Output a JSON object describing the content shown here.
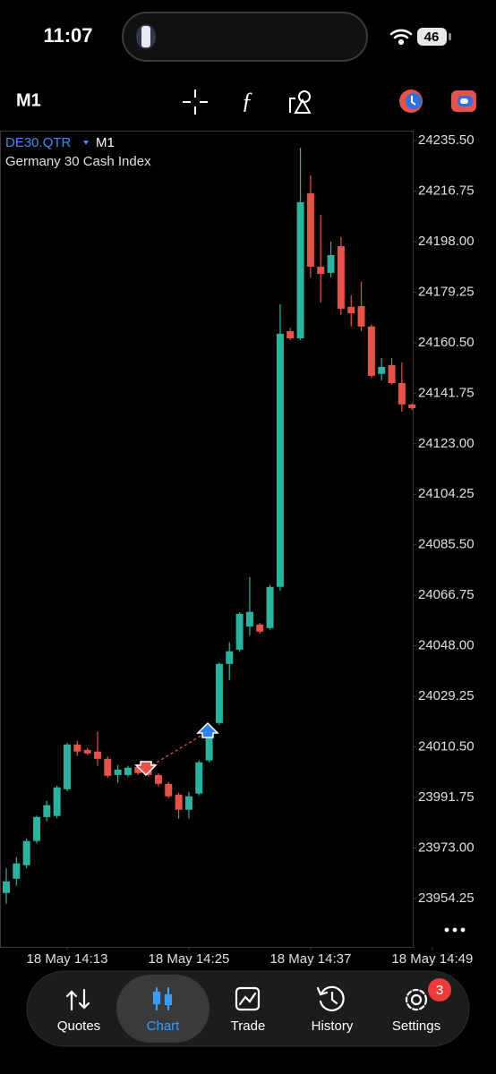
{
  "status_bar": {
    "time": "11:07",
    "battery": "46"
  },
  "toolbar": {
    "timeframe": "M1"
  },
  "chart_data": {
    "type": "candlestick",
    "symbol": "DE30.QTR",
    "timeframe": "M1",
    "title": "Germany 30 Cash Index",
    "categories": [
      null,
      null,
      null,
      null,
      null,
      null,
      "18 May 14:13",
      null,
      null,
      null,
      null,
      null,
      null,
      null,
      null,
      null,
      null,
      null,
      "18 May 14:25",
      null,
      null,
      null,
      null,
      null,
      null,
      null,
      null,
      null,
      null,
      null,
      "18 May 14:37",
      null,
      null,
      null,
      null,
      null,
      null,
      null,
      null,
      null,
      null,
      null,
      "18 May 14:49"
    ],
    "open": [
      23956.3,
      23961.6,
      23966.6,
      23975.6,
      23984.5,
      23984.9,
      23994.8,
      24011.4,
      24009.4,
      24008.8,
      24006.1,
      24000.1,
      24000.1,
      24003.1,
      24002.8,
      24000.1,
      23996.8,
      23992.8,
      23987.2,
      23993.2,
      24005.5,
      24019.4,
      24041.3,
      24046.6,
      24055.2,
      24055.9,
      24054.6,
      24069.9,
      24164.8,
      24162.1,
      24215.9,
      24188.7,
      24186.4,
      24196.3,
      24173.8,
      24174.1,
      24166.5,
      24148.9,
      24152.2,
      24145.5,
      24137.6,
      null,
      null
    ],
    "high": [
      23965.6,
      23969.6,
      23976.5,
      23985.0,
      23990.5,
      23996.2,
      24012.0,
      24012.8,
      24010.2,
      24016.1,
      24007.0,
      24003.8,
      24003.5,
      24003.8,
      24003.5,
      24000.8,
      23997.5,
      23993.5,
      23993.8,
      24005.5,
      24017.0,
      24041.8,
      24049.3,
      24060.5,
      24073.5,
      24056.6,
      24070.6,
      24174.8,
      24166.0,
      24232.8,
      24222.6,
      24207.9,
      24198.0,
      24199.6,
      24178.1,
      24183.1,
      24167.2,
      24154.8,
      24154.8,
      24153.2,
      24138.0,
      null,
      null
    ],
    "low": [
      23952.3,
      23959.0,
      23965.5,
      23974.8,
      23982.9,
      23984.0,
      23994.0,
      24007.1,
      24007.5,
      24003.5,
      23999.0,
      23997.2,
      23999.5,
      24000.1,
      23999.5,
      23996.0,
      23991.5,
      23983.9,
      23983.9,
      23992.5,
      24004.8,
      24018.7,
      24035.3,
      24045.8,
      24051.9,
      24052.5,
      24054.0,
      24068.5,
      24161.5,
      24161.5,
      24184.7,
      24175.4,
      24184.7,
      24170.8,
      24166.5,
      24164.8,
      24147.5,
      24146.5,
      24144.9,
      24134.9,
      24135.5,
      null,
      null
    ],
    "close": [
      23960.6,
      23967.3,
      23975.6,
      23984.5,
      23988.9,
      23995.5,
      24011.4,
      24008.8,
      24008.1,
      24006.1,
      23999.8,
      24002.1,
      24002.8,
      24000.8,
      24000.1,
      23996.8,
      23992.2,
      23987.2,
      23992.2,
      24004.8,
      24016.1,
      24041.3,
      24046.0,
      24059.9,
      24060.6,
      24053.3,
      24069.9,
      24163.8,
      24162.1,
      24212.6,
      24188.7,
      24186.0,
      24193.0,
      24173.1,
      24171.4,
      24166.5,
      24148.2,
      24151.5,
      24145.5,
      24137.6,
      24136.2,
      null,
      null
    ],
    "up_color": "#2bb3a0",
    "down_color": "#e5534b",
    "ylim": [
      23936.3,
      24238.5
    ],
    "yticks": [
      {
        "value": 24235.5,
        "label": "24235.50"
      },
      {
        "value": 24216.75,
        "label": "24216.75"
      },
      {
        "value": 24198,
        "label": "24198.00"
      },
      {
        "value": 24179.25,
        "label": "24179.25"
      },
      {
        "value": 24160.5,
        "label": "24160.50"
      },
      {
        "value": 24141.75,
        "label": "24141.75"
      },
      {
        "value": 24123,
        "label": "24123.00"
      },
      {
        "value": 24104.25,
        "label": "24104.25"
      },
      {
        "value": 24085.5,
        "label": "24085.50"
      },
      {
        "value": 24066.75,
        "label": "24066.75"
      },
      {
        "value": 24048,
        "label": "24048.00"
      },
      {
        "value": 24029.25,
        "label": "24029.25"
      },
      {
        "value": 24010.5,
        "label": "24010.50"
      },
      {
        "value": 23991.75,
        "label": "23991.75"
      },
      {
        "value": 23973,
        "label": "23973.00"
      },
      {
        "value": 23954.25,
        "label": "23954.25"
      }
    ]
  },
  "nav": {
    "items": [
      "Quotes",
      "Chart",
      "Trade",
      "History",
      "Settings"
    ],
    "active": 1,
    "badge": 3
  }
}
